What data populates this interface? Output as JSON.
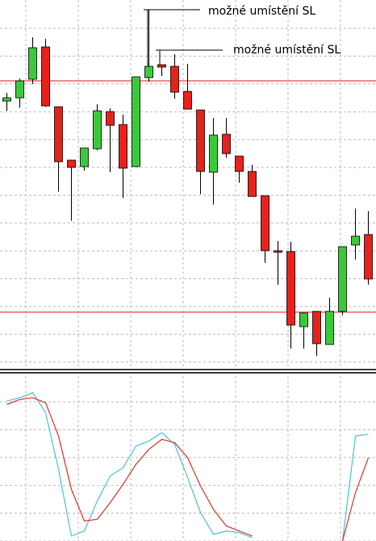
{
  "chart_data": [
    {
      "type": "candlestick",
      "annotations": [
        "možné umístění SL",
        "možné umístění SL"
      ],
      "open": [
        335,
        339,
        362,
        402,
        328,
        262,
        254,
        276,
        322,
        306,
        254,
        364,
        380,
        378,
        347,
        324,
        247,
        294,
        267,
        248,
        218,
        150,
        149,
        56,
        75,
        34,
        75,
        157,
        170
      ],
      "high": [
        345,
        363,
        414,
        412,
        328,
        262,
        277,
        331,
        326,
        318,
        365,
        448,
        380,
        393,
        381,
        324,
        314,
        314,
        267,
        256,
        218,
        162,
        161,
        73,
        75,
        92,
        155,
        202,
        199
      ],
      "low": [
        323,
        327,
        356,
        328,
        223,
        187,
        249,
        274,
        247,
        215,
        254,
        359,
        366,
        338,
        325,
        220,
        207,
        265,
        234,
        217,
        135,
        108,
        29,
        29,
        20,
        34,
        70,
        139,
        108
      ],
      "close": [
        339,
        360,
        401,
        329,
        260,
        253,
        277,
        323,
        305,
        252,
        365,
        378,
        377,
        346,
        325,
        248,
        293,
        270,
        248,
        217,
        150,
        148,
        58,
        73,
        35,
        75,
        155,
        168,
        115
      ],
      "up_color": "#3cc83c",
      "down_color": "#e8211c",
      "hlines": [
        360,
        74
      ],
      "hline_color": "#e04a4a",
      "ylim": [
        0,
        460
      ],
      "grid": true
    },
    {
      "type": "line",
      "series": [
        {
          "name": "main",
          "color": "#4cc3d9",
          "values": [
            84,
            86,
            89,
            77,
            43,
            3,
            6,
            24,
            39,
            44,
            57,
            60,
            65,
            58,
            38,
            17,
            4,
            6,
            5,
            2,
            null,
            null,
            null,
            null,
            null,
            null,
            0,
            63,
            64
          ]
        },
        {
          "name": "signal",
          "color": "#e0352b",
          "values": [
            82,
            85,
            86,
            83,
            63,
            31,
            12,
            13,
            23,
            34,
            46,
            55,
            61,
            59,
            50,
            33,
            19,
            9,
            6,
            3,
            null,
            null,
            null,
            null,
            null,
            null,
            0,
            29,
            50
          ]
        }
      ],
      "ylim": [
        0,
        100
      ],
      "grid": true
    }
  ]
}
